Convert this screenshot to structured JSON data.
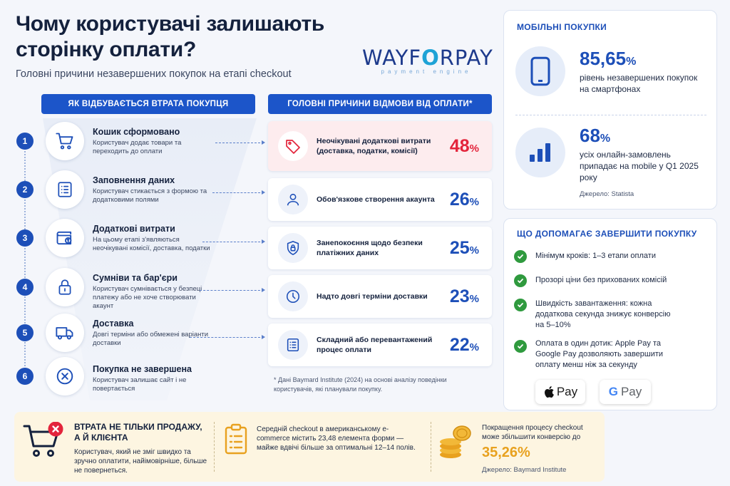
{
  "header": {
    "title": "Чому користувачі залишають сторінку оплати?",
    "subtitle": "Головні причини незавершених покупок на етапі checkout",
    "logo_main_1": "WAY",
    "logo_main_2": "F",
    "logo_main_lock": "O",
    "logo_main_3": "RPAY",
    "logo_sub": "payment engine"
  },
  "funnel": {
    "title": "ЯК ВІДБУВАЄТЬСЯ ВТРАТА ПОКУПЦЯ",
    "steps": [
      {
        "num": "1",
        "icon": "cart-icon",
        "title": "Кошик сформовано",
        "desc": "Користувач додає товари та переходить до оплати"
      },
      {
        "num": "2",
        "icon": "form-icon",
        "title": "Заповнення даних",
        "desc": "Користувач стикається з формою та додатковими полями"
      },
      {
        "num": "3",
        "icon": "wallet-icon",
        "title": "Додаткові витрати",
        "desc": "На цьому етапі з'являються неочікувані комісії, доставка, податки"
      },
      {
        "num": "4",
        "icon": "lock-icon",
        "title": "Сумніви та бар'єри",
        "desc": "Користувач сумнівається у безпеці платежу або не хоче створювати акаунт"
      },
      {
        "num": "5",
        "icon": "truck-icon",
        "title": "Доставка",
        "desc": "Довгі терміни або обмежені варіанти доставки"
      },
      {
        "num": "6",
        "icon": "x-circle-icon",
        "title": "Покупка не завершена",
        "desc": "Користувач залишає сайт і не повертається"
      }
    ]
  },
  "reasons": {
    "title": "ГОЛОВНІ ПРИЧИНИ ВІДМОВИ ВІД ОПЛАТИ*",
    "items": [
      {
        "icon": "tag-icon",
        "text": "Неочікувані додаткові витрати (доставка, податки, комісії)",
        "value": "48",
        "unit": "%"
      },
      {
        "icon": "user-icon",
        "text": "Обов'язкове створення акаунта",
        "value": "26",
        "unit": "%"
      },
      {
        "icon": "shield-lock-icon",
        "text": "Занепокоєння щодо безпеки платіжних даних",
        "value": "25",
        "unit": "%"
      },
      {
        "icon": "clock-icon",
        "text": "Надто довгі терміни доставки",
        "value": "23",
        "unit": "%"
      },
      {
        "icon": "list-icon",
        "text": "Складний або перевантажений процес оплати",
        "value": "22",
        "unit": "%"
      }
    ],
    "footnote": "* Дані Baymard Institute (2024) на основі аналізу поведінки користувачів, які планували покупку."
  },
  "mobile": {
    "title": "МОБІЛЬНІ ПОКУПКИ",
    "stat1_value": "85,65",
    "stat1_unit": "%",
    "stat1_desc": "рівень незавершених покупок на смартфонах",
    "stat2_value": "68",
    "stat2_unit": "%",
    "stat2_desc": "усіх онлайн-замовлень припадає на mobile у Q1 2025 року",
    "source": "Джерело: Statista"
  },
  "help": {
    "title": "ЩО ДОПОМАГАЄ ЗАВЕРШИТИ ПОКУПКУ",
    "items": [
      "Мінімум кроків: 1–3 етапи оплати",
      "Прозорі ціни без прихованих комісій",
      "Швидкість завантаження: кожна додаткова секунда знижує конверсію на 5–10%",
      "Оплата в один дотик: Apple Pay та Google Pay дозволяють завершити оплату менш ніж за секунду"
    ],
    "apple_pay": "Pay",
    "google_pay_g": "G",
    "google_pay": "Pay"
  },
  "banner": {
    "title": "ВТРАТА НЕ ТІЛЬКИ ПРОДАЖУ, А Й КЛІЄНТА",
    "text1": "Користувач, який не зміг швидко та зручно оплатити, найімовірніше, більше не повернеться.",
    "text2": "Середній checkout в американському e-commerce містить 23,48 елемента форми — майже вдвічі більше за оптимальні 12–14 полів.",
    "text3": "Покращення процесу checkout може збільшити конверсію до",
    "pct": "35,26%",
    "source": "Джерело: Baymard Institute"
  },
  "colors": {
    "primary": "#1d4fb8",
    "accent_red": "#e3243b",
    "success": "#2f9a3e",
    "gold": "#e8a11f"
  }
}
